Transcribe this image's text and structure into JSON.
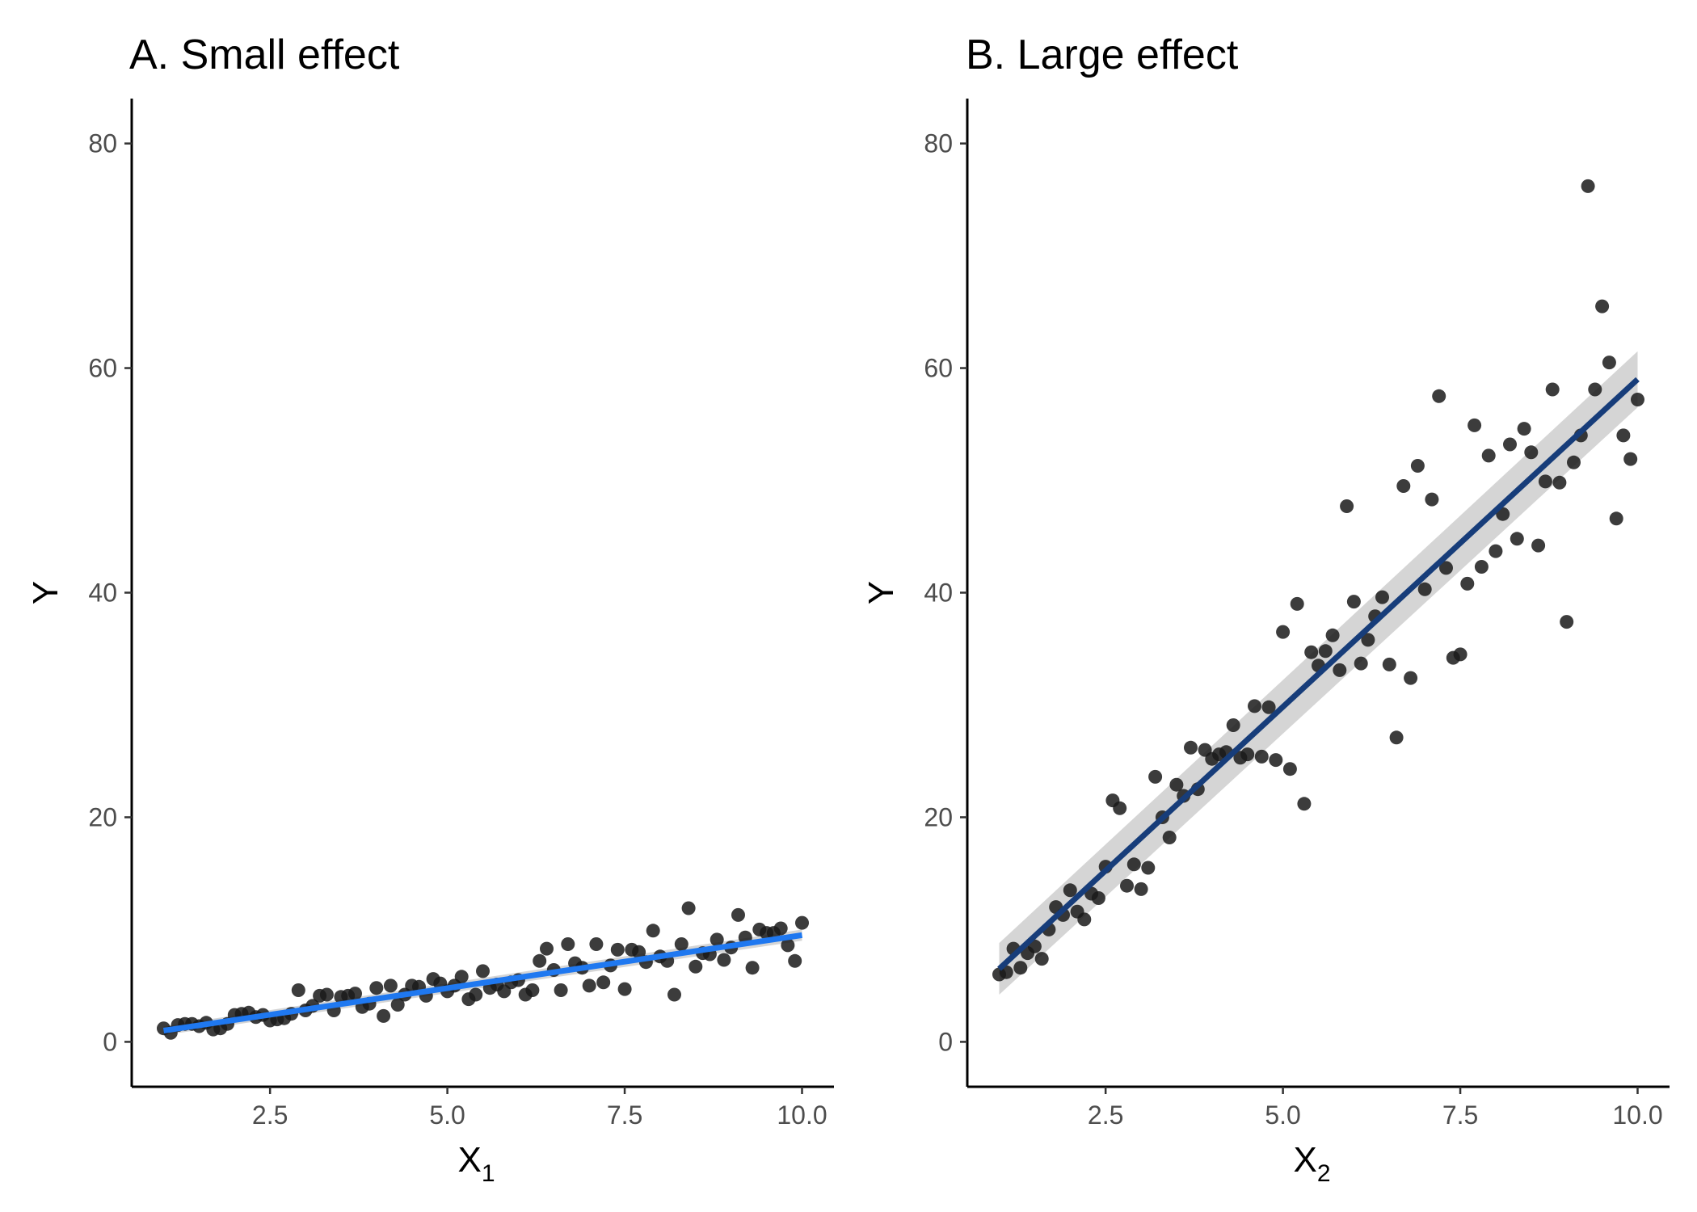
{
  "chart_data": [
    {
      "type": "scatter",
      "title": "A. Small effect",
      "xlabel": "X",
      "xlabel_sub": "1",
      "ylabel": "Y",
      "xlim": [
        0.55,
        10.45
      ],
      "ylim": [
        -4,
        84
      ],
      "xticks": [
        2.5,
        5.0,
        7.5,
        10.0
      ],
      "xtick_labels": [
        "2.5",
        "5.0",
        "7.5",
        "10.0"
      ],
      "yticks": [
        0,
        20,
        40,
        60,
        80
      ],
      "ytick_labels": [
        "0",
        "20",
        "40",
        "60",
        "80"
      ],
      "grid": false,
      "point_color": "#1a1a1a",
      "fit_line": {
        "color": "#1f78f0",
        "x": [
          1.0,
          10.0
        ],
        "y": [
          1.0,
          9.5
        ],
        "ribbon_halfwidth": [
          0.4,
          0.5
        ]
      },
      "x": [
        1.0,
        1.1,
        1.2,
        1.3,
        1.4,
        1.5,
        1.6,
        1.7,
        1.8,
        1.9,
        2.0,
        2.1,
        2.2,
        2.3,
        2.4,
        2.5,
        2.6,
        2.7,
        2.8,
        2.9,
        3.0,
        3.1,
        3.2,
        3.3,
        3.4,
        3.5,
        3.6,
        3.7,
        3.8,
        3.9,
        4.0,
        4.1,
        4.2,
        4.3,
        4.4,
        4.5,
        4.6,
        4.7,
        4.8,
        4.9,
        5.0,
        5.1,
        5.2,
        5.3,
        5.4,
        5.5,
        5.6,
        5.7,
        5.8,
        5.9,
        6.0,
        6.1,
        6.2,
        6.3,
        6.4,
        6.5,
        6.6,
        6.7,
        6.8,
        6.9,
        7.0,
        7.1,
        7.2,
        7.3,
        7.4,
        7.5,
        7.6,
        7.7,
        7.8,
        7.9,
        8.0,
        8.1,
        8.2,
        8.3,
        8.4,
        8.5,
        8.6,
        8.7,
        8.8,
        8.9,
        9.0,
        9.1,
        9.2,
        9.3,
        9.4,
        9.5,
        9.6,
        9.7,
        9.8,
        9.9,
        10.0
      ],
      "y": [
        1.2,
        0.8,
        1.5,
        1.6,
        1.6,
        1.4,
        1.7,
        1.1,
        1.2,
        1.6,
        2.4,
        2.5,
        2.6,
        2.2,
        2.4,
        1.9,
        2.0,
        2.1,
        2.5,
        4.6,
        2.8,
        3.2,
        4.1,
        4.2,
        2.8,
        4.0,
        4.1,
        4.3,
        3.1,
        3.4,
        4.8,
        2.3,
        5.0,
        3.3,
        4.2,
        5.0,
        4.9,
        4.1,
        5.6,
        5.2,
        4.5,
        5.0,
        5.8,
        3.8,
        4.2,
        6.3,
        4.8,
        5.1,
        4.5,
        5.3,
        5.5,
        4.2,
        4.6,
        7.2,
        8.3,
        6.4,
        4.6,
        8.7,
        7.0,
        6.6,
        5.0,
        8.7,
        5.3,
        6.8,
        8.2,
        4.7,
        8.2,
        8.0,
        7.1,
        9.9,
        7.6,
        7.2,
        4.2,
        8.7,
        11.9,
        6.7,
        7.9,
        7.8,
        9.1,
        7.3,
        8.4,
        11.3,
        9.3,
        6.6,
        10.0,
        9.7,
        9.7,
        10.1,
        8.6,
        7.2,
        10.6
      ]
    },
    {
      "type": "scatter",
      "title": "B. Large effect",
      "xlabel": "X",
      "xlabel_sub": "2",
      "ylabel": "Y",
      "xlim": [
        0.55,
        10.45
      ],
      "ylim": [
        -4,
        84
      ],
      "xticks": [
        2.5,
        5.0,
        7.5,
        10.0
      ],
      "xtick_labels": [
        "2.5",
        "5.0",
        "7.5",
        "10.0"
      ],
      "yticks": [
        0,
        20,
        40,
        60,
        80
      ],
      "ytick_labels": [
        "0",
        "20",
        "40",
        "60",
        "80"
      ],
      "grid": false,
      "point_color": "#1a1a1a",
      "fit_line": {
        "color": "#173d7a",
        "x": [
          1.0,
          10.0
        ],
        "y": [
          6.5,
          59.0
        ],
        "ribbon_halfwidth": [
          2.3,
          2.5
        ]
      },
      "x": [
        1.0,
        1.1,
        1.2,
        1.3,
        1.4,
        1.5,
        1.6,
        1.7,
        1.8,
        1.9,
        2.0,
        2.1,
        2.2,
        2.3,
        2.4,
        2.5,
        2.6,
        2.7,
        2.8,
        2.9,
        3.0,
        3.1,
        3.2,
        3.3,
        3.4,
        3.5,
        3.6,
        3.7,
        3.8,
        3.9,
        4.0,
        4.1,
        4.2,
        4.3,
        4.4,
        4.5,
        4.6,
        4.7,
        4.8,
        4.9,
        5.0,
        5.1,
        5.2,
        5.3,
        5.4,
        5.5,
        5.6,
        5.7,
        5.8,
        5.9,
        6.0,
        6.1,
        6.2,
        6.3,
        6.4,
        6.5,
        6.6,
        6.7,
        6.8,
        6.9,
        7.0,
        7.1,
        7.2,
        7.3,
        7.4,
        7.5,
        7.6,
        7.7,
        7.8,
        7.9,
        8.0,
        8.1,
        8.2,
        8.3,
        8.4,
        8.5,
        8.6,
        8.7,
        8.8,
        8.9,
        9.0,
        9.1,
        9.2,
        9.3,
        9.4,
        9.5,
        9.6,
        9.7,
        9.8,
        9.9,
        10.0
      ],
      "y": [
        6.0,
        6.2,
        8.3,
        6.6,
        7.9,
        8.5,
        7.4,
        10.0,
        12.0,
        11.3,
        13.5,
        11.6,
        10.9,
        13.2,
        12.8,
        15.6,
        21.5,
        20.8,
        13.9,
        15.8,
        13.6,
        15.5,
        23.6,
        20.0,
        18.2,
        22.9,
        21.9,
        26.2,
        22.5,
        26.0,
        25.2,
        25.6,
        25.8,
        28.2,
        25.3,
        25.6,
        29.9,
        25.4,
        29.8,
        25.1,
        36.5,
        24.3,
        39.0,
        21.2,
        34.7,
        33.5,
        34.8,
        36.2,
        33.1,
        47.7,
        39.2,
        33.7,
        35.8,
        37.9,
        39.6,
        33.6,
        27.1,
        49.5,
        32.4,
        51.3,
        40.3,
        48.3,
        57.5,
        42.2,
        34.2,
        34.5,
        40.8,
        54.9,
        42.3,
        52.2,
        43.7,
        47.0,
        53.2,
        44.8,
        54.6,
        52.5,
        44.2,
        49.9,
        58.1,
        49.8,
        37.4,
        51.6,
        54.0,
        76.2,
        58.1,
        65.5,
        60.5,
        46.6,
        54.0,
        51.9,
        57.2
      ]
    }
  ]
}
